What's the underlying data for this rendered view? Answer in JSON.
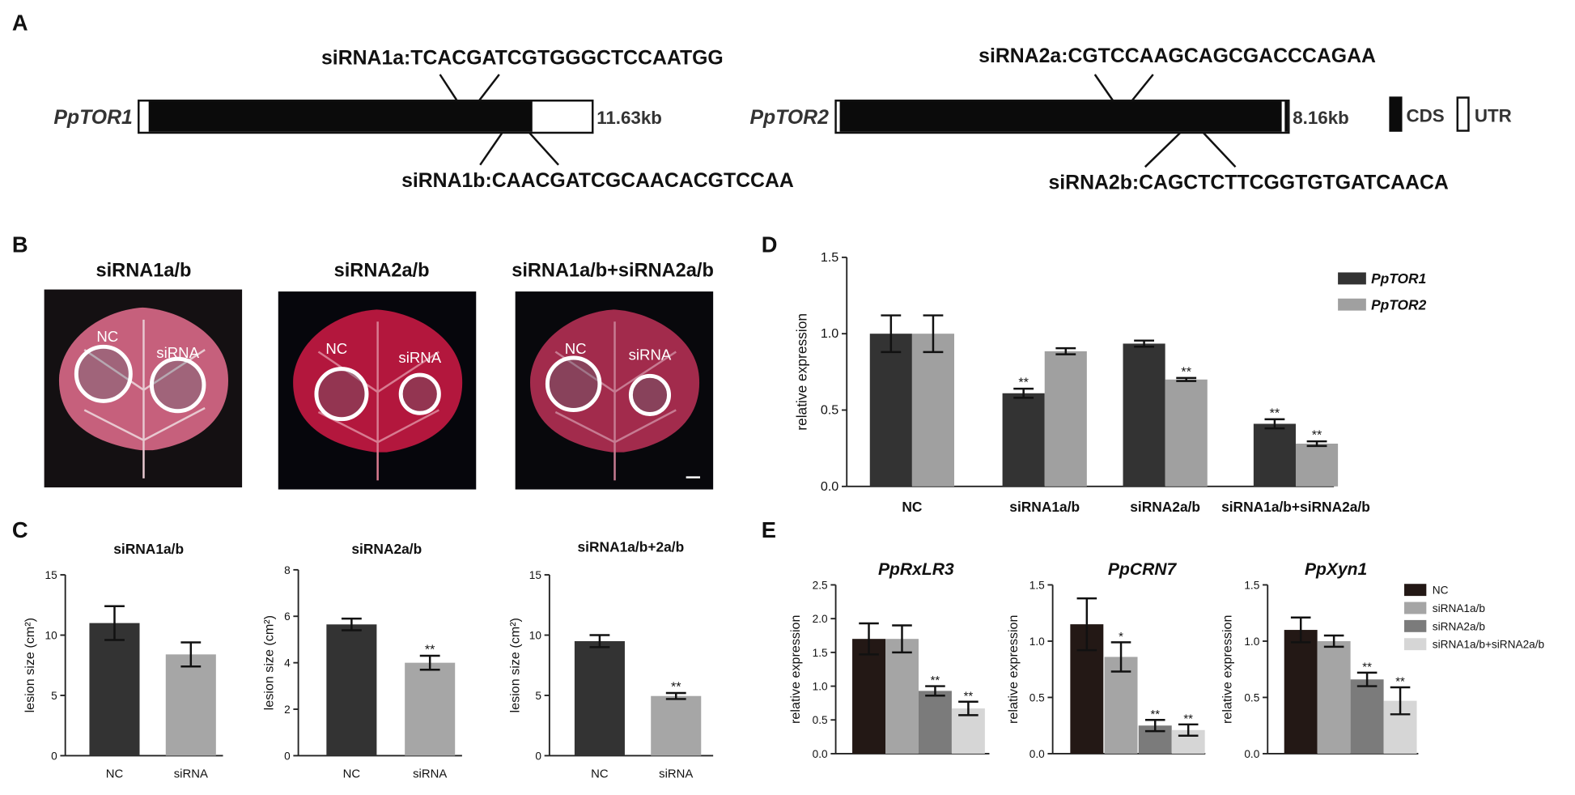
{
  "panel_labels": [
    "A",
    "B",
    "C",
    "D",
    "E"
  ],
  "gene_diagram": {
    "genes": [
      {
        "name": "PpTOR1",
        "length": "11.63kb",
        "sirna_top": "siRNA1a:TCACGATCGTGGGCTCCAATGG",
        "sirna_bottom": "siRNA1b:CAACGATCGCAACACGTCCAA"
      },
      {
        "name": "PpTOR2",
        "length": "8.16kb",
        "sirna_top": "siRNA2a:CGTCCAAGCAGCGACCCAGAA",
        "sirna_bottom": "siRNA2b:CAGCTCTTCGGTGTGATCAACA"
      }
    ],
    "legend": [
      "CDS",
      "UTR"
    ]
  },
  "leaf_images": [
    {
      "title": "siRNA1a/b",
      "labels": [
        "NC",
        "siRNA"
      ]
    },
    {
      "title": "siRNA2a/b",
      "labels": [
        "NC",
        "siRNA"
      ]
    },
    {
      "title": "siRNA1a/b+siRNA2a/b",
      "labels": [
        "NC",
        "siRNA"
      ]
    }
  ],
  "e_legend": {
    "names": [
      "NC",
      "siRNA1a/b",
      "siRNA2a/b",
      "siRNA1a/b+siRNA2a/b"
    ],
    "colors": [
      "#231815",
      "#a5a5a5",
      "#7b7b7b",
      "#d6d6d6"
    ]
  },
  "chart_data": [
    {
      "type": "bar",
      "title": "siRNA1a/b",
      "ylabel": "lesion size (cm²)",
      "categories": [
        "NC",
        "siRNA"
      ],
      "values": [
        11.0,
        8.4
      ],
      "errors": [
        1.4,
        1.0
      ],
      "colors": [
        "#333333",
        "#a6a6a6"
      ],
      "ylim": [
        0,
        15
      ],
      "yticks": [
        0,
        5,
        10,
        15
      ]
    },
    {
      "type": "bar",
      "title": "siRNA2a/b",
      "ylabel": "lesion size (cm²)",
      "categories": [
        "NC",
        "siRNA"
      ],
      "values": [
        5.65,
        4.0
      ],
      "errors": [
        0.25,
        0.3
      ],
      "significance": [
        null,
        "**"
      ],
      "colors": [
        "#333333",
        "#a6a6a6"
      ],
      "ylim": [
        0,
        8
      ],
      "yticks": [
        0,
        2,
        4,
        6,
        8
      ]
    },
    {
      "type": "bar",
      "title": "siRNA1a/b+2a/b",
      "ylabel": "lesion size (cm²)",
      "categories": [
        "NC",
        "siRNA"
      ],
      "values": [
        9.5,
        4.95
      ],
      "errors": [
        0.5,
        0.25
      ],
      "significance": [
        null,
        "**"
      ],
      "colors": [
        "#333333",
        "#a6a6a6"
      ],
      "ylim": [
        0,
        15
      ],
      "yticks": [
        0,
        5,
        10,
        15
      ]
    },
    {
      "type": "grouped-bar",
      "ylabel": "relative expression",
      "categories": [
        "NC",
        "siRNA1a/b",
        "siRNA2a/b",
        "siRNA1a/b+siRNA2a/b"
      ],
      "series": [
        {
          "name": "PpTOR1",
          "color": "#333333",
          "values": [
            1.0,
            0.61,
            0.935,
            0.41
          ],
          "errors": [
            0.12,
            0.03,
            0.02,
            0.03
          ],
          "significance": [
            null,
            "**",
            null,
            "**"
          ]
        },
        {
          "name": "PpTOR2",
          "color": "#a0a0a0",
          "values": [
            1.0,
            0.885,
            0.7,
            0.28
          ],
          "errors": [
            0.12,
            0.02,
            0.01,
            0.015
          ],
          "significance": [
            null,
            null,
            "**",
            "**"
          ]
        }
      ],
      "ylim": [
        0,
        1.5
      ],
      "yticks": [
        {
          "value": 0,
          "label": "0.0"
        },
        0.5,
        {
          "value": 1,
          "label": "1.0"
        },
        1.5
      ],
      "legend": "top-right"
    },
    {
      "type": "bar",
      "title": "PpRxLR3",
      "ylabel": "relative expression",
      "values": [
        1.7,
        1.7,
        0.93,
        0.67
      ],
      "errors": [
        0.23,
        0.2,
        0.07,
        0.1
      ],
      "significance": [
        null,
        null,
        "**",
        "**"
      ],
      "ylim": [
        0,
        2.5
      ],
      "yticks": [
        {
          "value": 0,
          "label": "0.0"
        },
        0.5,
        {
          "value": 1,
          "label": "1.0"
        },
        1.5,
        {
          "value": 2,
          "label": "2.0"
        },
        2.5
      ]
    },
    {
      "type": "bar",
      "title": "PpCRN7",
      "ylabel": "relative expression",
      "values": [
        1.15,
        0.86,
        0.25,
        0.21
      ],
      "errors": [
        0.23,
        0.13,
        0.05,
        0.05
      ],
      "significance": [
        null,
        "*",
        "**",
        "**"
      ],
      "ylim": [
        0,
        1.5
      ],
      "yticks": [
        {
          "value": 0,
          "label": "0.0"
        },
        0.5,
        {
          "value": 1,
          "label": "1.0"
        },
        1.5
      ]
    },
    {
      "type": "bar",
      "title": "PpXyn1",
      "ylabel": "relative expression",
      "values": [
        1.1,
        1.0,
        0.66,
        0.47
      ],
      "errors": [
        0.11,
        0.05,
        0.06,
        0.12
      ],
      "significance": [
        null,
        null,
        "**",
        "**"
      ],
      "ylim": [
        0,
        1.5
      ],
      "yticks": [
        {
          "value": 0,
          "label": "0.0"
        },
        0.5,
        {
          "value": 1,
          "label": "1.0"
        },
        1.5
      ]
    }
  ]
}
